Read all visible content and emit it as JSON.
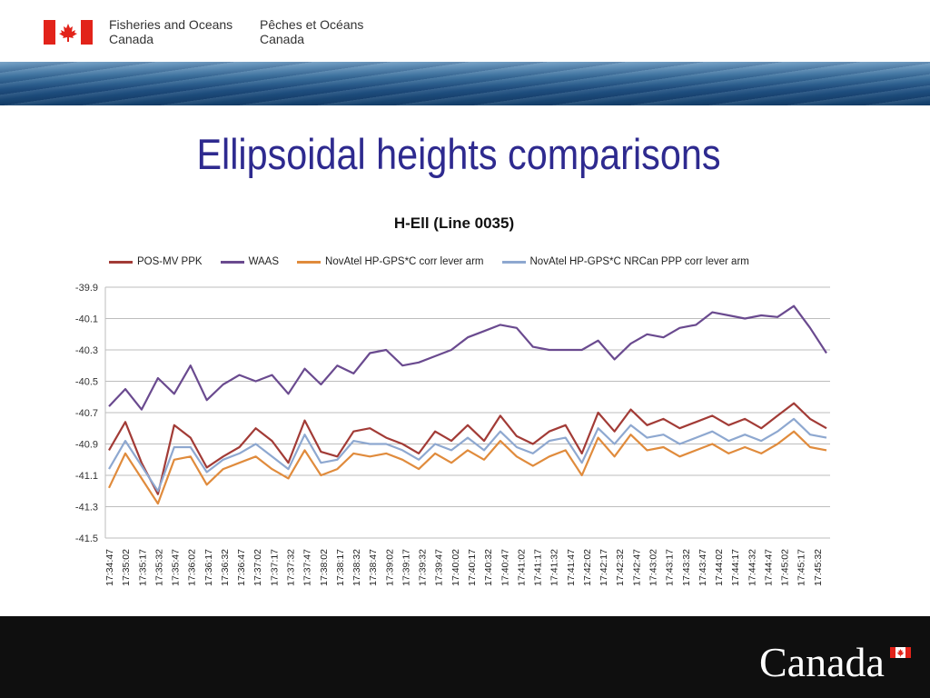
{
  "header": {
    "dept_en": [
      "Fisheries and Oceans",
      "Canada"
    ],
    "dept_fr": [
      "Pêches et Océans",
      "Canada"
    ]
  },
  "slide": {
    "title": "Ellipsoidal heights comparisons"
  },
  "footer": {
    "wordmark": "Canada"
  },
  "colors": {
    "title": "#2e2a8f",
    "series": [
      "#a23b36",
      "#6a4a8f",
      "#e08b3c",
      "#8ea8d0"
    ],
    "flag_red": "#e2231a",
    "footer": "#0f0f0f"
  },
  "chart_data": {
    "type": "line",
    "title": "H-Ell (Line 0035)",
    "xlabel": "",
    "ylabel": "",
    "ylim": [
      -41.5,
      -39.9
    ],
    "yticks": [
      "-39.9",
      "-40.1",
      "-40.3",
      "-40.5",
      "-40.7",
      "-40.9",
      "-41.1",
      "-41.3",
      "-41.5"
    ],
    "grid": true,
    "legend_position": "top",
    "x_tick_labels": [
      "17:34:47",
      "17:35:02",
      "17:35:17",
      "17:35:32",
      "17:35:47",
      "17:36:02",
      "17:36:17",
      "17:36:32",
      "17:36:47",
      "17:37:02",
      "17:37:17",
      "17:37:32",
      "17:37:47",
      "17:38:02",
      "17:38:17",
      "17:38:32",
      "17:38:47",
      "17:39:02",
      "17:39:17",
      "17:39:32",
      "17:39:47",
      "17:40:02",
      "17:40:17",
      "17:40:32",
      "17:40:47",
      "17:41:02",
      "17:41:17",
      "17:41:32",
      "17:41:47",
      "17:42:02",
      "17:42:17",
      "17:42:32",
      "17:42:47",
      "17:43:02",
      "17:43:17",
      "17:43:32",
      "17:43:47",
      "17:44:02",
      "17:44:17",
      "17:44:32",
      "17:44:47",
      "17:45:02",
      "17:45:17",
      "17:45:32"
    ],
    "x": [
      "17:34:47",
      "17:35:02",
      "17:35:17",
      "17:35:32",
      "17:35:47",
      "17:36:02",
      "17:36:17",
      "17:36:32",
      "17:36:47",
      "17:37:02",
      "17:37:17",
      "17:37:32",
      "17:37:47",
      "17:38:02",
      "17:38:17",
      "17:38:32",
      "17:38:47",
      "17:39:02",
      "17:39:17",
      "17:39:32",
      "17:39:47",
      "17:40:02",
      "17:40:17",
      "17:40:32",
      "17:40:47",
      "17:41:02",
      "17:41:17",
      "17:41:32",
      "17:41:47",
      "17:42:02",
      "17:42:17",
      "17:42:32",
      "17:42:47",
      "17:43:02",
      "17:43:17",
      "17:43:32",
      "17:43:47",
      "17:44:02",
      "17:44:17",
      "17:44:32",
      "17:44:47",
      "17:45:02",
      "17:45:17",
      "17:45:32",
      "17:45:42"
    ],
    "series": [
      {
        "name": "POS-MV PPK",
        "values": [
          -40.94,
          -40.76,
          -41.02,
          -41.22,
          -40.78,
          -40.86,
          -41.05,
          -40.98,
          -40.92,
          -40.8,
          -40.88,
          -41.02,
          -40.75,
          -40.95,
          -40.98,
          -40.82,
          -40.8,
          -40.86,
          -40.9,
          -40.96,
          -40.82,
          -40.88,
          -40.78,
          -40.88,
          -40.72,
          -40.85,
          -40.9,
          -40.82,
          -40.78,
          -40.96,
          -40.7,
          -40.82,
          -40.68,
          -40.78,
          -40.74,
          -40.8,
          -40.76,
          -40.72,
          -40.78,
          -40.74,
          -40.8,
          -40.72,
          -40.64,
          -40.74,
          -40.8
        ]
      },
      {
        "name": "WAAS",
        "values": [
          -40.66,
          -40.55,
          -40.68,
          -40.48,
          -40.58,
          -40.4,
          -40.62,
          -40.52,
          -40.46,
          -40.5,
          -40.46,
          -40.58,
          -40.42,
          -40.52,
          -40.4,
          -40.45,
          -40.32,
          -40.3,
          -40.4,
          -40.38,
          -40.34,
          -40.3,
          -40.22,
          -40.18,
          -40.14,
          -40.16,
          -40.28,
          -40.3,
          -40.3,
          -40.3,
          -40.24,
          -40.36,
          -40.26,
          -40.2,
          -40.22,
          -40.16,
          -40.14,
          -40.06,
          -40.08,
          -40.1,
          -40.08,
          -40.09,
          -40.02,
          -40.16,
          -40.32
        ]
      },
      {
        "name": "NovAtel HP-GPS*C corr lever arm",
        "values": [
          -41.18,
          -40.96,
          -41.12,
          -41.28,
          -41.0,
          -40.98,
          -41.16,
          -41.06,
          -41.02,
          -40.98,
          -41.06,
          -41.12,
          -40.94,
          -41.1,
          -41.06,
          -40.96,
          -40.98,
          -40.96,
          -41.0,
          -41.06,
          -40.96,
          -41.02,
          -40.94,
          -41.0,
          -40.88,
          -40.98,
          -41.04,
          -40.98,
          -40.94,
          -41.1,
          -40.86,
          -40.98,
          -40.84,
          -40.94,
          -40.92,
          -40.98,
          -40.94,
          -40.9,
          -40.96,
          -40.92,
          -40.96,
          -40.9,
          -40.82,
          -40.92,
          -40.94
        ]
      },
      {
        "name": "NovAtel HP-GPS*C NRCan PPP corr lever arm",
        "values": [
          -41.06,
          -40.88,
          -41.04,
          -41.2,
          -40.92,
          -40.92,
          -41.08,
          -41.0,
          -40.96,
          -40.9,
          -40.98,
          -41.06,
          -40.84,
          -41.02,
          -41.0,
          -40.88,
          -40.9,
          -40.9,
          -40.94,
          -41.0,
          -40.9,
          -40.94,
          -40.86,
          -40.94,
          -40.82,
          -40.92,
          -40.96,
          -40.88,
          -40.86,
          -41.02,
          -40.8,
          -40.9,
          -40.78,
          -40.86,
          -40.84,
          -40.9,
          -40.86,
          -40.82,
          -40.88,
          -40.84,
          -40.88,
          -40.82,
          -40.74,
          -40.84,
          -40.86
        ]
      }
    ]
  }
}
